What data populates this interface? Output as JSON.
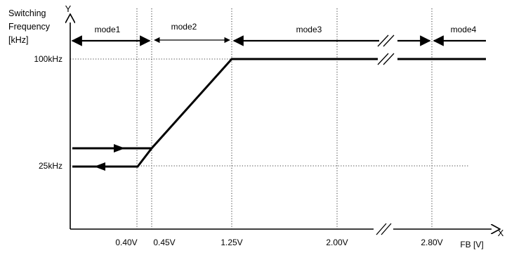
{
  "y_axis": {
    "name": "Y",
    "title_line1": "Switching",
    "title_line2": "Frequency",
    "title_line3": "[kHz]"
  },
  "x_axis": {
    "name": "X",
    "title": "FB [V]"
  },
  "y_ticks": [
    "100kHz",
    "25kHz"
  ],
  "x_ticks": [
    "0.40V",
    "0.45V",
    "1.25V",
    "2.00V",
    "2.80V"
  ],
  "modes": [
    "mode1",
    "mode2",
    "mode3",
    "mode4"
  ]
}
